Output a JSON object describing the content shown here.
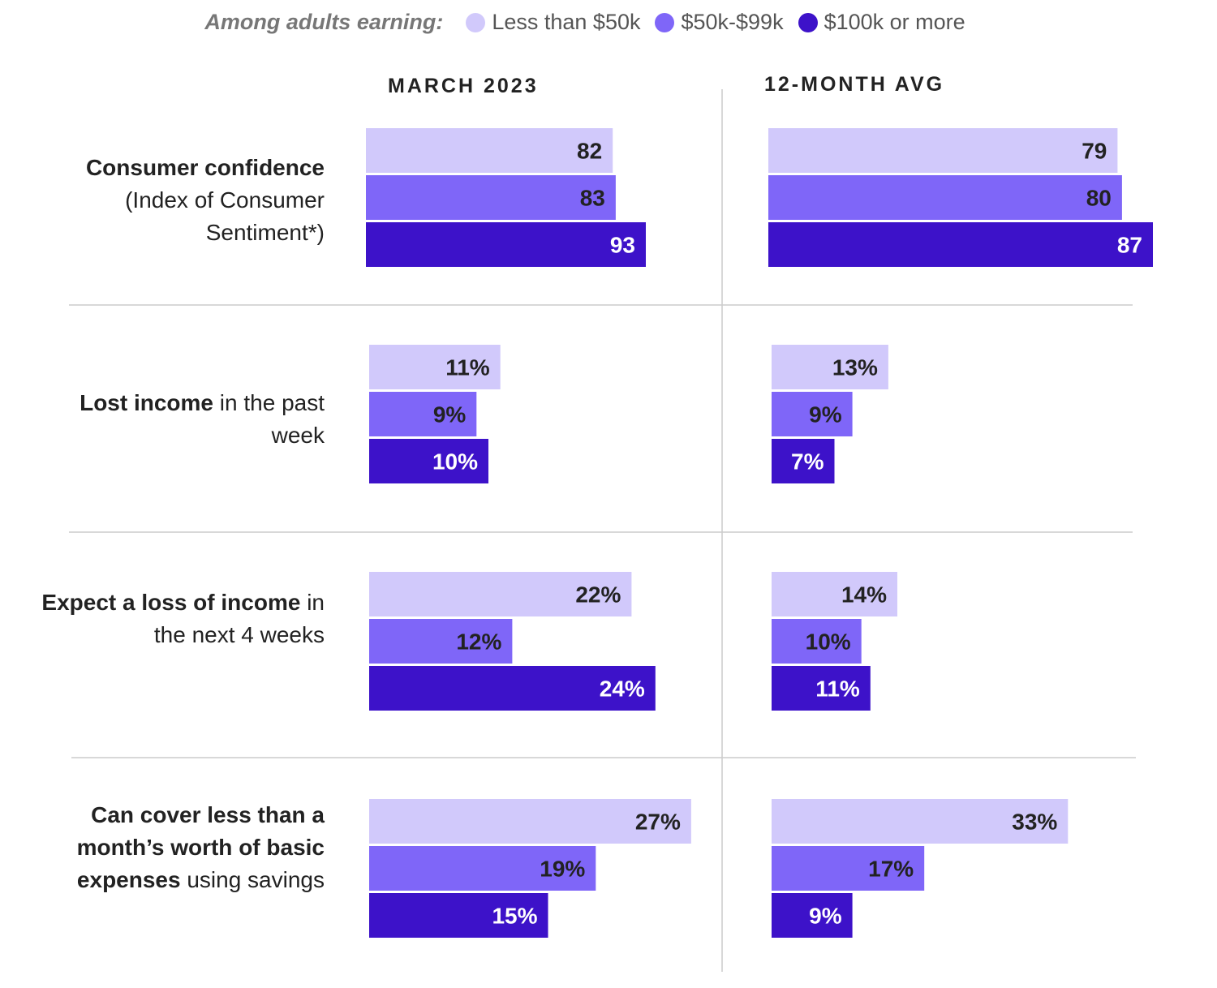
{
  "legend": {
    "title": "Among adults earning:",
    "items": [
      {
        "label": "Less than $50k",
        "color": "#d1c9fb"
      },
      {
        "label": "$50k-$99k",
        "color": "#7f66f8"
      },
      {
        "label": "$100k or more",
        "color": "#3d12c9"
      }
    ]
  },
  "columns": {
    "left": "MARCH 2023",
    "right": "12-MONTH AVG"
  },
  "rows": [
    {
      "bold": "Consumer confidence",
      "rest": "(Index of Consumer Sentiment*)"
    },
    {
      "bold": "Lost income",
      "rest": " in the past week"
    },
    {
      "bold": "Expect a loss of income",
      "rest": " in the next 4 weeks"
    },
    {
      "bold": "Can cover less than a month’s worth of basic expenses",
      "rest": " using savings"
    }
  ],
  "chart_data": {
    "type": "bar",
    "orientation": "horizontal",
    "categories": [
      "Consumer confidence (Index of Consumer Sentiment*)",
      "Lost income in the past week",
      "Expect a loss of income in the next 4 weeks",
      "Can cover less than a month’s worth of basic expenses using savings"
    ],
    "panels": [
      {
        "title": "MARCH 2023",
        "series": [
          {
            "name": "Less than $50k",
            "values": [
              82,
              11,
              22,
              27
            ],
            "labels": [
              "82",
              "11%",
              "22%",
              "27%"
            ]
          },
          {
            "name": "$50k-$99k",
            "values": [
              83,
              9,
              12,
              19
            ],
            "labels": [
              "83",
              "9%",
              "12%",
              "19%"
            ]
          },
          {
            "name": "$100k or more",
            "values": [
              93,
              10,
              24,
              15
            ],
            "labels": [
              "93",
              "10%",
              "24%",
              "15%"
            ]
          }
        ]
      },
      {
        "title": "12-MONTH AVG",
        "series": [
          {
            "name": "Less than $50k",
            "values": [
              79,
              13,
              14,
              33
            ],
            "labels": [
              "79",
              "13%",
              "14%",
              "33%"
            ]
          },
          {
            "name": "$50k-$99k",
            "values": [
              80,
              9,
              10,
              17
            ],
            "labels": [
              "80",
              "9%",
              "10%",
              "17%"
            ]
          },
          {
            "name": "$100k or more",
            "values": [
              87,
              7,
              11,
              9
            ],
            "labels": [
              "87",
              "7%",
              "11%",
              "9%"
            ]
          }
        ]
      }
    ],
    "series_colors": [
      "#d1c9fb",
      "#7f66f8",
      "#3d12c9"
    ],
    "label_colors": [
      "#222222",
      "#222222",
      "#ffffff"
    ],
    "grid": false,
    "legend_position": "top"
  }
}
